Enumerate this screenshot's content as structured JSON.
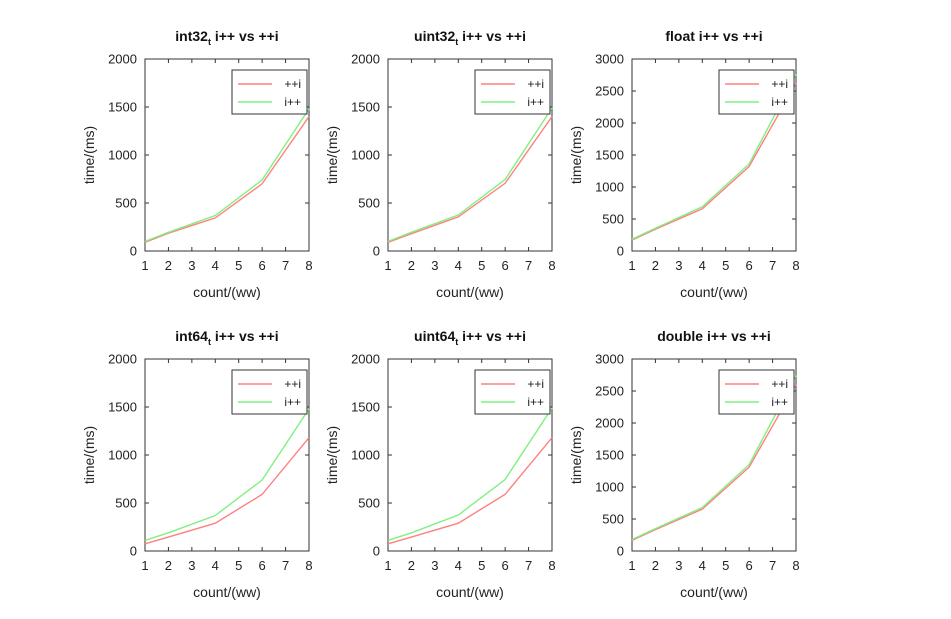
{
  "figure": {
    "background": "#ffffff",
    "series_colors": {
      "++i": "#ff8080",
      "i++": "#80f080"
    }
  },
  "chart_data": [
    {
      "type": "line",
      "title": "int32",
      "title_subscript": "t",
      "title_suffix": " i++ vs ++i",
      "xlabel": "count/(ww)",
      "ylabel": "time/(ms)",
      "x": [
        1,
        2,
        4,
        6,
        8
      ],
      "xlim": [
        1,
        8
      ],
      "xticks": [
        1,
        2,
        3,
        4,
        5,
        6,
        7,
        8
      ],
      "ylim": [
        0,
        2000
      ],
      "yticks": [
        0,
        500,
        1000,
        1500,
        2000
      ],
      "legend_position": "top-right",
      "grid": false,
      "series": [
        {
          "name": "++i",
          "color": "#ff8080",
          "values": [
            90,
            185,
            345,
            700,
            1400
          ]
        },
        {
          "name": "i++",
          "color": "#80f080",
          "values": [
            100,
            195,
            370,
            740,
            1480
          ]
        }
      ]
    },
    {
      "type": "line",
      "title": "uint32",
      "title_subscript": "t",
      "title_suffix": " i++ vs ++i",
      "xlabel": "count/(ww)",
      "ylabel": "time/(ms)",
      "x": [
        1,
        2,
        4,
        6,
        8
      ],
      "xlim": [
        1,
        8
      ],
      "xticks": [
        1,
        2,
        3,
        4,
        5,
        6,
        7,
        8
      ],
      "ylim": [
        0,
        2000
      ],
      "yticks": [
        0,
        500,
        1000,
        1500,
        2000
      ],
      "legend_position": "top-right",
      "grid": false,
      "series": [
        {
          "name": "++i",
          "color": "#ff8080",
          "values": [
            90,
            180,
            355,
            705,
            1400
          ]
        },
        {
          "name": "i++",
          "color": "#80f080",
          "values": [
            100,
            195,
            375,
            745,
            1490
          ]
        }
      ]
    },
    {
      "type": "line",
      "title": "float i++ vs ++i",
      "xlabel": "count/(ww)",
      "ylabel": "time/(ms)",
      "x": [
        1,
        2,
        4,
        6,
        8
      ],
      "xlim": [
        1,
        8
      ],
      "xticks": [
        1,
        2,
        3,
        4,
        5,
        6,
        7,
        8
      ],
      "ylim": [
        0,
        3000
      ],
      "yticks": [
        0,
        500,
        1000,
        1500,
        2000,
        2500,
        3000
      ],
      "legend_position": "top-right",
      "grid": false,
      "series": [
        {
          "name": "++i",
          "color": "#ff8080",
          "values": [
            170,
            340,
            660,
            1320,
            2620
          ]
        },
        {
          "name": "i++",
          "color": "#80f080",
          "values": [
            185,
            355,
            690,
            1360,
            2760
          ]
        }
      ]
    },
    {
      "type": "line",
      "title": "int64",
      "title_subscript": "t",
      "title_suffix": " i++ vs ++i",
      "xlabel": "count/(ww)",
      "ylabel": "time/(ms)",
      "x": [
        1,
        2,
        4,
        6,
        8
      ],
      "xlim": [
        1,
        8
      ],
      "xticks": [
        1,
        2,
        3,
        4,
        5,
        6,
        7,
        8
      ],
      "ylim": [
        0,
        2000
      ],
      "yticks": [
        0,
        500,
        1000,
        1500,
        2000
      ],
      "legend_position": "top-right",
      "grid": false,
      "series": [
        {
          "name": "++i",
          "color": "#ff8080",
          "values": [
            75,
            145,
            290,
            590,
            1180
          ]
        },
        {
          "name": "i++",
          "color": "#80f080",
          "values": [
            110,
            190,
            370,
            740,
            1480
          ]
        }
      ]
    },
    {
      "type": "line",
      "title": "uint64",
      "title_subscript": "t",
      "title_suffix": " i++ vs ++i",
      "xlabel": "count/(ww)",
      "ylabel": "time/(ms)",
      "x": [
        1,
        2,
        4,
        6,
        8
      ],
      "xlim": [
        1,
        8
      ],
      "xticks": [
        1,
        2,
        3,
        4,
        5,
        6,
        7,
        8
      ],
      "ylim": [
        0,
        2000
      ],
      "yticks": [
        0,
        500,
        1000,
        1500,
        2000
      ],
      "legend_position": "top-right",
      "grid": false,
      "series": [
        {
          "name": "++i",
          "color": "#ff8080",
          "values": [
            75,
            145,
            290,
            590,
            1180
          ]
        },
        {
          "name": "i++",
          "color": "#80f080",
          "values": [
            110,
            190,
            375,
            745,
            1490
          ]
        }
      ]
    },
    {
      "type": "line",
      "title": "double i++ vs ++i",
      "xlabel": "count/(ww)",
      "ylabel": "time/(ms)",
      "x": [
        1,
        2,
        4,
        6,
        8
      ],
      "xlim": [
        1,
        8
      ],
      "xticks": [
        1,
        2,
        3,
        4,
        5,
        6,
        7,
        8
      ],
      "ylim": [
        0,
        3000
      ],
      "yticks": [
        0,
        500,
        1000,
        1500,
        2000,
        2500,
        3000
      ],
      "legend_position": "top-right",
      "grid": false,
      "series": [
        {
          "name": "++i",
          "color": "#ff8080",
          "values": [
            165,
            335,
            655,
            1310,
            2600
          ]
        },
        {
          "name": "i++",
          "color": "#80f080",
          "values": [
            180,
            350,
            680,
            1350,
            2740
          ]
        }
      ]
    }
  ]
}
